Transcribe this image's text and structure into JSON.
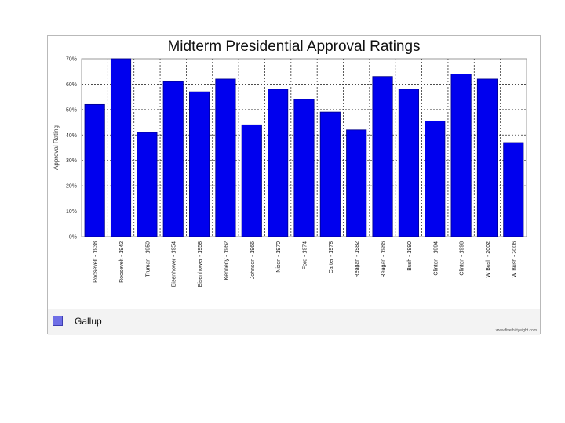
{
  "chart_data": {
    "type": "bar",
    "title": "Midterm Presidential Approval Ratings",
    "ylabel": "Approval Rating",
    "xlabel": "",
    "ylim": [
      0,
      70
    ],
    "yticks": [
      "0%",
      "10%",
      "20%",
      "30%",
      "40%",
      "50%",
      "60%",
      "70%"
    ],
    "grid": true,
    "legend_position": "bottom-left",
    "bar_color": "#0000ee",
    "bar_edge_color": "#000088",
    "categories": [
      "Roosevelt - 1938",
      "Roosevelt - 1942",
      "Truman - 1950",
      "Eisenhower - 1954",
      "Eisenhower - 1958",
      "Kennedy - 1962",
      "Johnson - 1966",
      "Nixon - 1970",
      "Ford - 1974",
      "Carter - 1978",
      "Reagan - 1982",
      "Reagan - 1986",
      "Bush - 1990",
      "Clinton - 1994",
      "Clinton - 1998",
      "W Bush - 2002",
      "W Bush - 2006"
    ],
    "series": [
      {
        "name": "Gallup",
        "color": "#0000ee",
        "values": [
          52,
          70,
          41,
          61,
          57,
          62,
          44,
          58,
          54,
          49,
          42,
          63,
          58,
          45.5,
          64,
          62,
          37
        ]
      }
    ]
  },
  "credit": "www.fivethirtyeight.com"
}
